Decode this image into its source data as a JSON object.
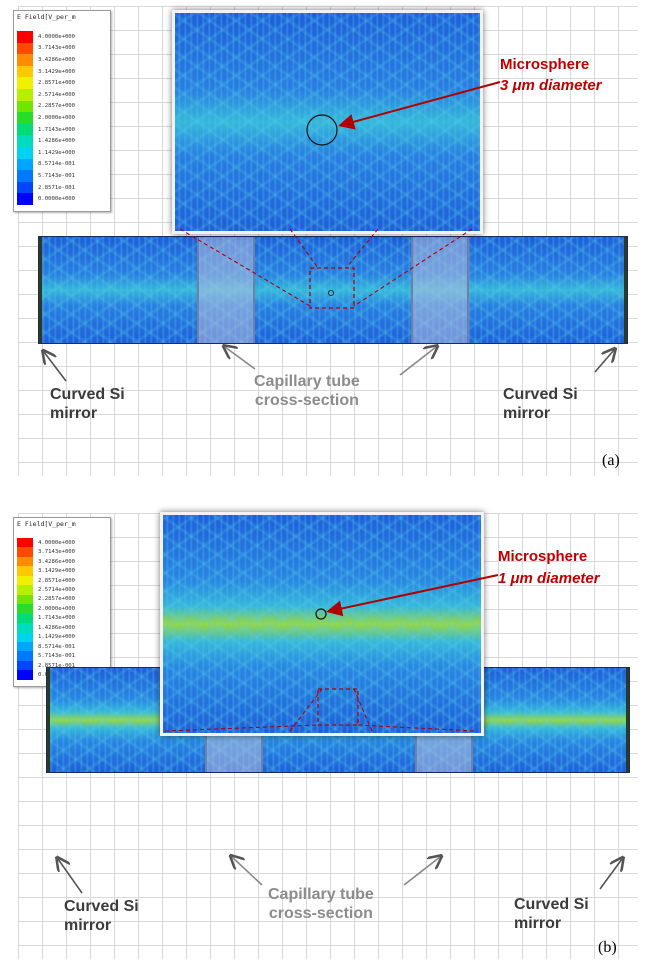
{
  "colorbar": {
    "title": "E Field[V_per_m",
    "levels": [
      {
        "label": "4.0000e+000",
        "color": "#ff0000"
      },
      {
        "label": "3.7143e+000",
        "color": "#ff4a00"
      },
      {
        "label": "3.4286e+000",
        "color": "#ff8c00"
      },
      {
        "label": "3.1429e+000",
        "color": "#ffc800"
      },
      {
        "label": "2.8571e+000",
        "color": "#f0f000"
      },
      {
        "label": "2.5714e+000",
        "color": "#b4f000"
      },
      {
        "label": "2.2857e+000",
        "color": "#6ee600"
      },
      {
        "label": "2.0000e+000",
        "color": "#28dc28"
      },
      {
        "label": "1.7143e+000",
        "color": "#00dc78"
      },
      {
        "label": "1.4286e+000",
        "color": "#00dcbe"
      },
      {
        "label": "1.1429e+000",
        "color": "#00d2f0"
      },
      {
        "label": "8.5714e-001",
        "color": "#00a5ff"
      },
      {
        "label": "5.7143e-001",
        "color": "#0078ff"
      },
      {
        "label": "2.8571e-001",
        "color": "#0046ff"
      },
      {
        "label": "0.0000e+000",
        "color": "#0000ff"
      }
    ]
  },
  "panel_a": {
    "tag": "(a)",
    "microsphere_line1": "Microsphere",
    "microsphere_line2": "3 μm diameter",
    "left_mirror": [
      "Curved Si",
      "mirror"
    ],
    "capillary": [
      "Capillary tube",
      "cross-section"
    ],
    "right_mirror": [
      "Curved Si",
      "mirror"
    ]
  },
  "panel_b": {
    "tag": "(b)",
    "colorbar_title": "E Field[V_per_m",
    "microsphere_line1": "Microsphere",
    "microsphere_line2": "1 μm diameter",
    "left_mirror": [
      "Curved Si",
      "mirror"
    ],
    "capillary": [
      "Capillary tube",
      "cross-section"
    ],
    "right_mirror": [
      "Curved Si",
      "mirror"
    ]
  },
  "colors": {
    "annotation_red": "#c00000",
    "label_dark": "#3b3b3b",
    "label_grey": "#8c8c8c",
    "field_blue": "#1f5fd8",
    "field_teal": "#36b8d8",
    "field_green": "#9ad83a",
    "capillary_border": "#6f7fa5"
  }
}
